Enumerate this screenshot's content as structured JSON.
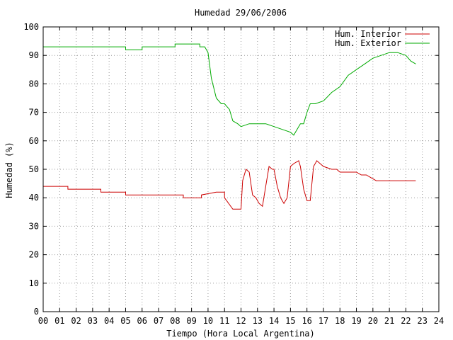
{
  "chart_data": {
    "type": "line",
    "title": "Humedad 29/06/2006",
    "xlabel": "Tiempo (Hora Local Argentina)",
    "ylabel": "Humedad (%)",
    "xlim": [
      0,
      24
    ],
    "ylim": [
      0,
      100
    ],
    "x_ticks": [
      0,
      1,
      2,
      3,
      4,
      5,
      6,
      7,
      8,
      9,
      10,
      11,
      12,
      13,
      14,
      15,
      16,
      17,
      18,
      19,
      20,
      21,
      22,
      23,
      24
    ],
    "x_tick_labels": [
      "00",
      "01",
      "02",
      "03",
      "04",
      "05",
      "06",
      "07",
      "08",
      "09",
      "10",
      "11",
      "12",
      "13",
      "14",
      "15",
      "16",
      "17",
      "18",
      "19",
      "20",
      "21",
      "22",
      "23",
      "24"
    ],
    "y_ticks": [
      0,
      10,
      20,
      30,
      40,
      50,
      60,
      70,
      80,
      90,
      100
    ],
    "y_tick_labels": [
      "0",
      "10",
      "20",
      "30",
      "40",
      "50",
      "60",
      "70",
      "80",
      "90",
      "100"
    ],
    "grid": true,
    "legend_position": "top-right",
    "series": [
      {
        "name": "Hum. Interior",
        "color": "#cc0000",
        "x": [
          0,
          0.6,
          0.6,
          1.5,
          1.5,
          3.5,
          3.5,
          5.0,
          5.0,
          6.0,
          7.0,
          7.0,
          8.5,
          8.5,
          9.6,
          9.6,
          10.5,
          10.5,
          11.0,
          11.0,
          11.5,
          11.5,
          12.0,
          12.1,
          12.3,
          12.5,
          12.7,
          12.9,
          13.1,
          13.3,
          13.5,
          13.7,
          13.9,
          14.0,
          14.2,
          14.4,
          14.6,
          14.8,
          15.0,
          15.2,
          15.5,
          15.6,
          15.8,
          16.0,
          16.1,
          16.2,
          16.4,
          16.6,
          16.8,
          17.0,
          17.5,
          17.8,
          18.0,
          18.5,
          19.0,
          19.3,
          19.6,
          19.9,
          20.2,
          20.8,
          21.5,
          22.0,
          22.6
        ],
        "y": [
          44,
          44,
          44,
          44,
          43,
          43,
          42,
          42,
          41,
          41,
          41,
          41,
          41,
          40,
          40,
          41,
          42,
          42,
          42,
          40,
          36,
          36,
          36,
          46,
          50,
          49,
          41,
          40,
          38,
          37,
          44,
          51,
          50,
          50,
          44,
          40,
          38,
          40,
          51,
          52,
          53,
          51,
          43,
          39,
          39,
          39,
          51,
          53,
          52,
          51,
          50,
          50,
          49,
          49,
          49,
          48,
          48,
          47,
          46,
          46,
          46,
          46,
          46
        ]
      },
      {
        "name": "Hum. Exterior",
        "color": "#00aa00",
        "x": [
          0,
          5.0,
          5.0,
          6.0,
          6.0,
          7.0,
          7.0,
          8.0,
          8.0,
          9.5,
          9.5,
          9.8,
          10.0,
          10.2,
          10.5,
          10.8,
          11.0,
          11.3,
          11.5,
          11.8,
          12.0,
          12.5,
          13.0,
          13.5,
          14.0,
          14.5,
          15.0,
          15.2,
          15.4,
          15.6,
          15.8,
          16.0,
          16.2,
          16.5,
          17.0,
          17.5,
          18.0,
          18.5,
          19.0,
          19.5,
          20.0,
          20.5,
          21.0,
          21.5,
          22.0,
          22.3,
          22.6
        ],
        "y": [
          93,
          93,
          92,
          92,
          93,
          93,
          93,
          93,
          94,
          94,
          93,
          93,
          91,
          82,
          75,
          73,
          73,
          71,
          67,
          66,
          65,
          66,
          66,
          66,
          65,
          64,
          63,
          62,
          64,
          66,
          66,
          70,
          73,
          73,
          74,
          77,
          79,
          83,
          85,
          87,
          89,
          90,
          91,
          91,
          90,
          88,
          87
        ]
      }
    ]
  }
}
